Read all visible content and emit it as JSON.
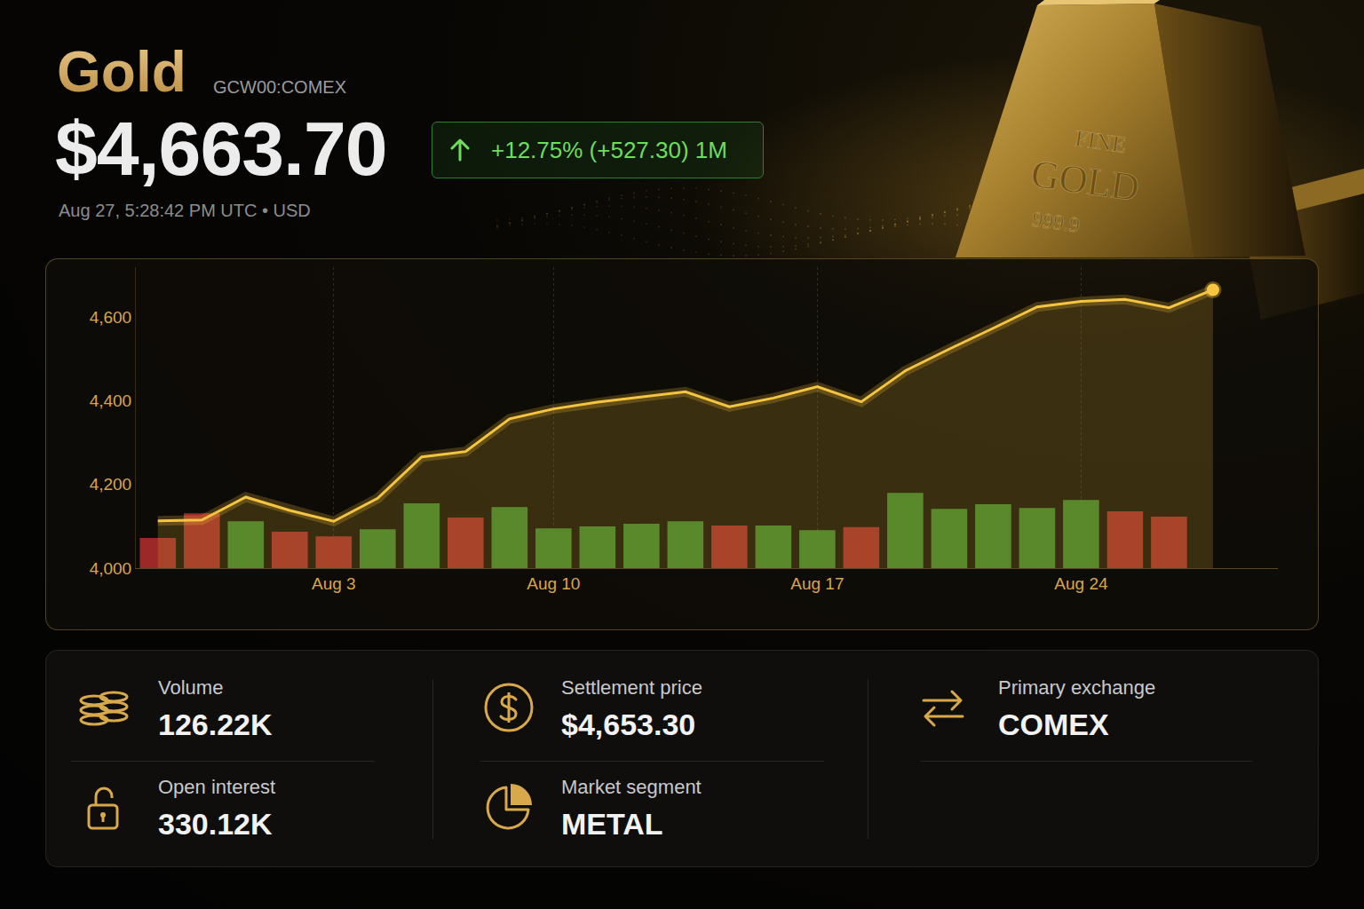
{
  "header": {
    "title": "Gold",
    "ticker": "GCW00:COMEX",
    "price": "$4,663.70",
    "change": "+12.75% (+527.30) 1M",
    "timestamp": "Aug 27, 5:28:42 PM UTC • USD"
  },
  "image_text": [
    "FINE",
    "GOLD",
    "999.9"
  ],
  "chart_data": {
    "type": "line",
    "categories": [
      null,
      null,
      null,
      null,
      "Aug 3",
      null,
      null,
      null,
      null,
      "Aug 10",
      null,
      null,
      null,
      null,
      null,
      "Aug 17",
      null,
      null,
      null,
      null,
      null,
      "Aug 24",
      null,
      null,
      null
    ],
    "series": [
      {
        "type": "bar",
        "values": [
          4072,
          4131,
          4112,
          4087,
          4076,
          4093,
          4155,
          4121,
          4146,
          4095,
          4100,
          4106,
          4112,
          4102,
          4102,
          4091,
          4098,
          4180,
          4142,
          4153,
          4144,
          4163,
          4136,
          4123,
          null
        ],
        "colors": [
          "#a82b2b",
          "#a82b2b",
          "#3c8b2f",
          "#a82b2b",
          "#a82b2b",
          "#3c8b2f",
          "#3c8b2f",
          "#a82b2b",
          "#3c8b2f",
          "#3c8b2f",
          "#3c8b2f",
          "#3c8b2f",
          "#3c8b2f",
          "#a82b2b",
          "#3c8b2f",
          "#3c8b2f",
          "#a82b2b",
          "#3c8b2f",
          "#3c8b2f",
          "#3c8b2f",
          "#3c8b2f",
          "#3c8b2f",
          "#a82b2b",
          "#a82b2b",
          null
        ]
      },
      {
        "type": "line",
        "color": "#f5c542",
        "values": [
          4113,
          4115,
          4170,
          4138,
          4112,
          4167,
          4266,
          4279,
          4357,
          4381,
          4397,
          4410,
          4422,
          4386,
          4407,
          4434,
          4398,
          4472,
          4524,
          4574,
          4625,
          4638,
          4643,
          4623,
          4666
        ]
      }
    ],
    "ylim": [
      4000,
      4720
    ],
    "yticks": [
      {
        "value": 4000,
        "label": "4,000"
      },
      {
        "value": 4200,
        "label": "4,200"
      },
      {
        "value": 4400,
        "label": "4,400"
      },
      {
        "value": 4600,
        "label": "4,600"
      }
    ],
    "grid": true
  },
  "stats": [
    [
      {
        "label": "Volume",
        "value": "126.22K"
      },
      {
        "label": "Open interest",
        "value": "330.12K"
      }
    ],
    [
      {
        "label": "Settlement price",
        "value": "$4,653.30"
      },
      {
        "label": "Market segment",
        "value": "METAL"
      }
    ],
    [
      {
        "label": "Primary exchange",
        "value": "COMEX"
      }
    ]
  ]
}
